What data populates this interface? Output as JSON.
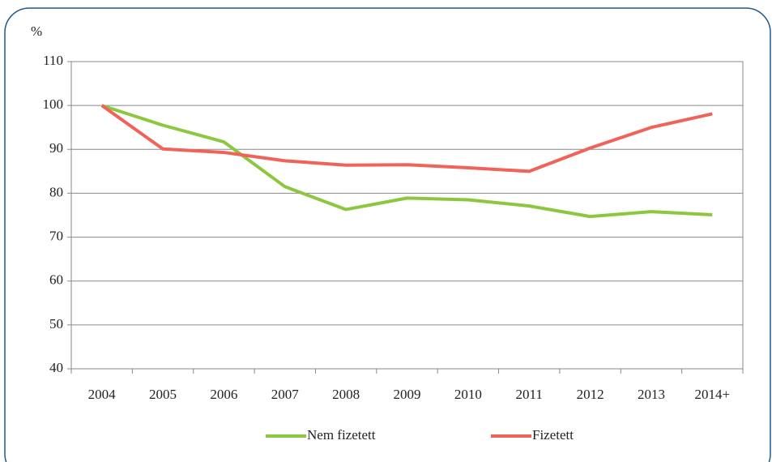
{
  "chart_data": {
    "type": "line",
    "y_label": "%",
    "categories": [
      "2004",
      "2005",
      "2006",
      "2007",
      "2008",
      "2009",
      "2010",
      "2011",
      "2012",
      "2013",
      "2014+"
    ],
    "series": [
      {
        "name": "Nem fizetett",
        "color": "#8dc63f",
        "values": [
          100,
          95.5,
          91.7,
          81.5,
          76.3,
          78.9,
          78.5,
          77.1,
          74.7,
          75.8,
          75.1
        ]
      },
      {
        "name": "Fizetett",
        "color": "#f0625a",
        "values": [
          100,
          90.1,
          89.3,
          87.4,
          86.4,
          86.5,
          85.8,
          85.0,
          90.3,
          95.0,
          98.1
        ]
      }
    ],
    "ylim": [
      40,
      110
    ],
    "yticks": [
      40,
      50,
      60,
      70,
      80,
      90,
      100,
      110
    ],
    "grid": true
  }
}
